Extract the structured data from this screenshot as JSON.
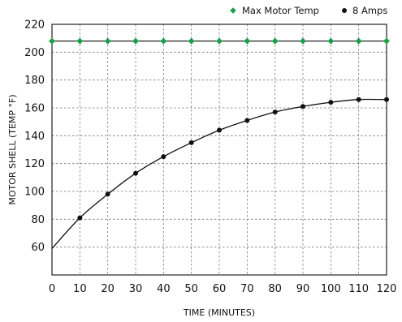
{
  "chart_data": {
    "type": "line",
    "title": "",
    "xlabel": "TIME (MINUTES)",
    "ylabel": "MOTOR SHELL (TEMP °F)",
    "xlim": [
      0,
      120
    ],
    "ylim": [
      40,
      220
    ],
    "x_ticks": [
      0,
      10,
      20,
      30,
      40,
      50,
      60,
      70,
      80,
      90,
      100,
      110,
      120
    ],
    "y_tick_labels": [
      60,
      80,
      100,
      120,
      140,
      160,
      180,
      200,
      220
    ],
    "grid": true,
    "legend_position": "top-right",
    "series": [
      {
        "name": "Max Motor Temp",
        "color": "#1a9f4a",
        "marker": "diamond",
        "x": [
          0,
          10,
          20,
          30,
          40,
          50,
          60,
          70,
          80,
          90,
          100,
          110,
          120
        ],
        "values": [
          208,
          208,
          208,
          208,
          208,
          208,
          208,
          208,
          208,
          208,
          208,
          208,
          208
        ]
      },
      {
        "name": "8 Amps",
        "color": "#111111",
        "marker": "circle",
        "x": [
          0,
          10,
          20,
          30,
          40,
          50,
          60,
          70,
          80,
          90,
          100,
          110,
          120
        ],
        "values": [
          59,
          81,
          98,
          113,
          125,
          135,
          144,
          151,
          157,
          161,
          164,
          166,
          166
        ]
      }
    ]
  }
}
